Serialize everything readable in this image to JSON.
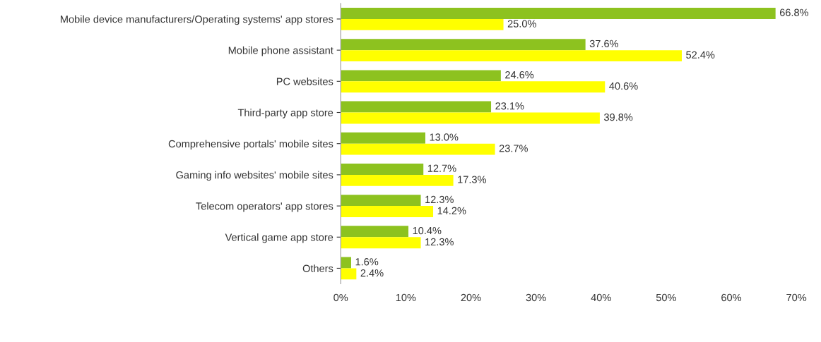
{
  "chart_data": {
    "type": "bar",
    "orientation": "horizontal",
    "categories": [
      "Mobile device manufacturers/Operating systems' app stores",
      "Mobile phone assistant",
      "PC websites",
      "Third-party app store",
      "Comprehensive portals' mobile sites",
      "Gaming info websites' mobile sites",
      "Telecom operators' app stores",
      "Vertical game app store",
      "Others"
    ],
    "series": [
      {
        "color": "#8dc21f",
        "values": [
          66.8,
          37.6,
          24.6,
          23.1,
          13.0,
          12.7,
          12.3,
          10.4,
          1.6
        ],
        "value_labels": [
          "66.8%",
          "37.6%",
          "24.6%",
          "23.1%",
          "13.0%",
          "12.7%",
          "12.3%",
          "10.4%",
          "1.6%"
        ]
      },
      {
        "color": "#ffff00",
        "values": [
          25.0,
          52.4,
          40.6,
          39.8,
          23.7,
          17.3,
          14.2,
          12.3,
          2.4
        ],
        "value_labels": [
          "25.0%",
          "52.4%",
          "40.6%",
          "39.8%",
          "23.7%",
          "17.3%",
          "14.2%",
          "12.3%",
          "2.4%"
        ]
      }
    ],
    "xlim": [
      0,
      70
    ],
    "xticks": [
      {
        "value": 0,
        "label": "0%"
      },
      {
        "value": 10,
        "label": "10%"
      },
      {
        "value": 20,
        "label": "20%"
      },
      {
        "value": 30,
        "label": "30%"
      },
      {
        "value": 40,
        "label": "40%"
      },
      {
        "value": 50,
        "label": "50%"
      },
      {
        "value": 60,
        "label": "60%"
      },
      {
        "value": 70,
        "label": "70%"
      }
    ],
    "grid": false,
    "legend": false
  }
}
